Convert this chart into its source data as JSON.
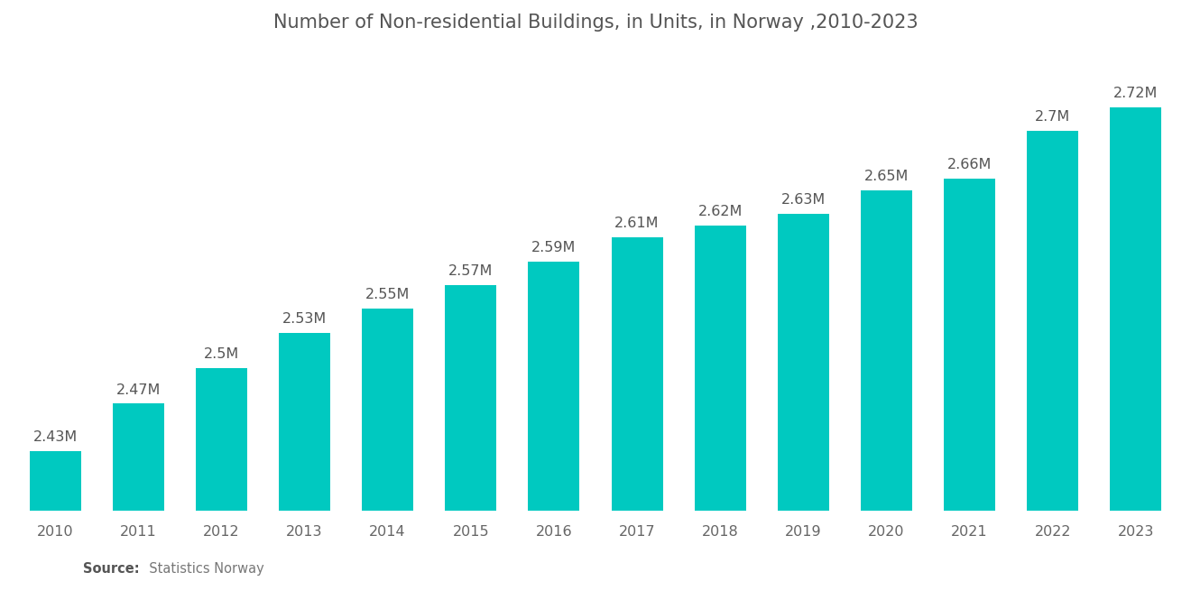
{
  "title": "Number of Non-residential Buildings, in Units, in Norway ,2010-2023",
  "years": [
    2010,
    2011,
    2012,
    2013,
    2014,
    2015,
    2016,
    2017,
    2018,
    2019,
    2020,
    2021,
    2022,
    2023
  ],
  "values": [
    2.43,
    2.47,
    2.5,
    2.53,
    2.55,
    2.57,
    2.59,
    2.61,
    2.62,
    2.63,
    2.65,
    2.66,
    2.7,
    2.72
  ],
  "labels": [
    "2.43M",
    "2.47M",
    "2.5M",
    "2.53M",
    "2.55M",
    "2.57M",
    "2.59M",
    "2.61M",
    "2.62M",
    "2.63M",
    "2.65M",
    "2.66M",
    "2.7M",
    "2.72M"
  ],
  "bar_color": "#00C9C0",
  "background_color": "#ffffff",
  "title_fontsize": 15,
  "label_fontsize": 11.5,
  "tick_fontsize": 11.5,
  "source_bold": "Source:",
  "source_rest": "  Statistics Norway",
  "ylim_min": 2.38,
  "ylim_max": 2.755,
  "bar_width": 0.62
}
